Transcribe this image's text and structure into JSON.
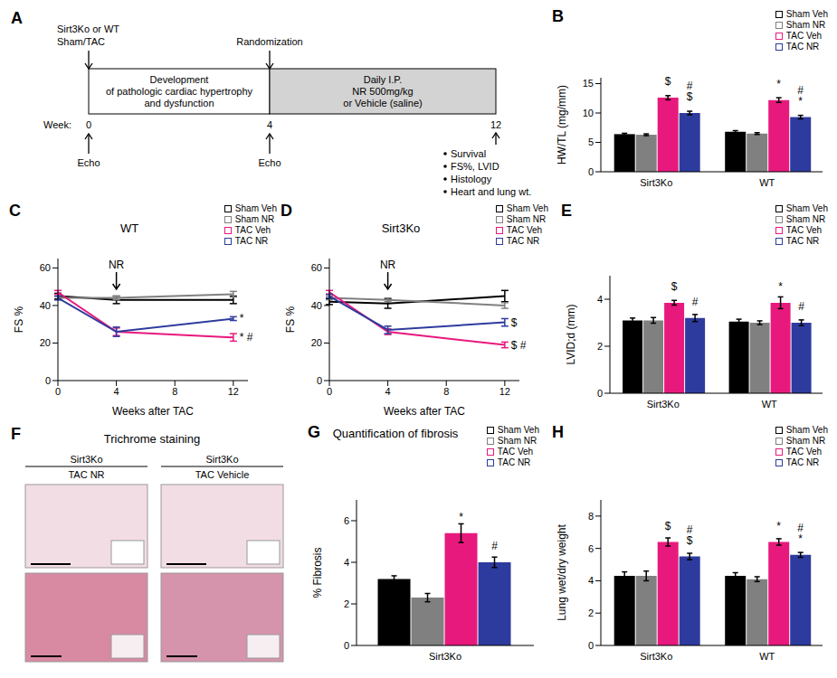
{
  "diagram": {
    "panel": "A",
    "start_labels": [
      "Sirt3Ko or WT",
      "Sham/TAC"
    ],
    "randomization": "Randomization",
    "phase1": [
      "Development",
      "of pathologic cardiac hypertrophy",
      "and dysfunction"
    ],
    "phase2": [
      "Daily I.P.",
      "NR 500mg/kg",
      "or Vehicle (saline)"
    ],
    "week_label": "Week:",
    "weeks": [
      0,
      4,
      12
    ],
    "echo": "Echo",
    "outcomes": [
      "Survival",
      "FS%, LVID",
      "Histology",
      "Heart and lung wt."
    ]
  },
  "image_panel": {
    "panel": "F",
    "title": "Trichrome staining",
    "columns": [
      [
        "Sirt3Ko",
        "TAC NR"
      ],
      [
        "Sirt3Ko",
        "TAC Vehicle"
      ]
    ]
  },
  "chart_data": [
    {
      "panel": "B",
      "type": "bar",
      "y_label": "HW/TL (mg/mm)",
      "categories": [
        "Sirt3Ko",
        "WT"
      ],
      "ylim": [
        0,
        16
      ],
      "yticks": [
        0,
        5,
        10,
        15
      ],
      "series": [
        {
          "name": "Sham Veh",
          "color": "#000000",
          "values": [
            6.4,
            6.8
          ],
          "errors": [
            0.15,
            0.2
          ]
        },
        {
          "name": "Sham NR",
          "color": "#808080",
          "values": [
            6.3,
            6.5
          ],
          "errors": [
            0.15,
            0.15
          ]
        },
        {
          "name": "TAC Veh",
          "color": "#e8197d",
          "values": [
            12.6,
            12.2
          ],
          "errors": [
            0.35,
            0.4
          ],
          "annotations": [
            [
              "$"
            ],
            [
              "*"
            ]
          ]
        },
        {
          "name": "TAC NR",
          "color": "#2e3b9e",
          "values": [
            10.0,
            9.3
          ],
          "errors": [
            0.3,
            0.3
          ],
          "annotations": [
            [
              "#",
              "$"
            ],
            [
              "#",
              "*"
            ]
          ]
        }
      ]
    },
    {
      "panel": "C",
      "type": "line",
      "title": "WT",
      "x": [
        0,
        4,
        12
      ],
      "xlim": [
        0,
        13
      ],
      "xticks": [
        0,
        4,
        8,
        12
      ],
      "x_label": "Weeks after TAC",
      "y_label": "FS %",
      "ylim": [
        0,
        65
      ],
      "yticks": [
        0,
        20,
        40,
        60
      ],
      "annotation": {
        "text": "NR",
        "x": 4
      },
      "series": [
        {
          "name": "Sham Veh",
          "color": "#000000",
          "values": [
            45,
            43,
            43
          ],
          "errors": [
            1.5,
            2,
            2
          ]
        },
        {
          "name": "Sham NR",
          "color": "#808080",
          "values": [
            44,
            44,
            46
          ],
          "errors": [
            1,
            1,
            1.5
          ]
        },
        {
          "name": "TAC Veh",
          "color": "#e8197d",
          "values": [
            47,
            26,
            23
          ],
          "errors": [
            1,
            2,
            2
          ],
          "annotation": "* #"
        },
        {
          "name": "TAC NR",
          "color": "#2e3b9e",
          "values": [
            44,
            26,
            33
          ],
          "errors": [
            1,
            2.5,
            1
          ],
          "annotation": "*"
        }
      ]
    },
    {
      "panel": "D",
      "type": "line",
      "title": "Sirt3Ko",
      "x": [
        0,
        4,
        12
      ],
      "xlim": [
        0,
        13
      ],
      "xticks": [
        0,
        4,
        8,
        12
      ],
      "x_label": "Weeks after TAC",
      "y_label": "FS %",
      "ylim": [
        0,
        65
      ],
      "yticks": [
        0,
        20,
        40,
        60
      ],
      "annotation": {
        "text": "NR",
        "x": 4
      },
      "series": [
        {
          "name": "Sham Veh",
          "color": "#000000",
          "values": [
            42,
            41,
            45
          ],
          "errors": [
            1.5,
            2.5,
            3
          ]
        },
        {
          "name": "Sham NR",
          "color": "#808080",
          "values": [
            44,
            43,
            40
          ],
          "errors": [
            1,
            1,
            1.5
          ]
        },
        {
          "name": "TAC Veh",
          "color": "#e8197d",
          "values": [
            47,
            26,
            19
          ],
          "errors": [
            1,
            1.5,
            1.5
          ],
          "annotation": "$ #"
        },
        {
          "name": "TAC NR",
          "color": "#2e3b9e",
          "values": [
            45,
            27,
            31
          ],
          "errors": [
            1,
            2,
            2
          ],
          "annotation": "$"
        }
      ]
    },
    {
      "panel": "E",
      "type": "bar",
      "y_label": "LVID;d (mm)",
      "categories": [
        "Sirt3Ko",
        "WT"
      ],
      "ylim": [
        0,
        5
      ],
      "yticks": [
        0,
        2,
        4
      ],
      "series": [
        {
          "name": "Sham Veh",
          "color": "#000000",
          "values": [
            3.1,
            3.05
          ],
          "errors": [
            0.1,
            0.1
          ]
        },
        {
          "name": "Sham NR",
          "color": "#808080",
          "values": [
            3.1,
            3.0
          ],
          "errors": [
            0.12,
            0.08
          ]
        },
        {
          "name": "TAC Veh",
          "color": "#e8197d",
          "values": [
            3.85,
            3.85
          ],
          "errors": [
            0.1,
            0.25
          ],
          "annotations": [
            [
              "$"
            ],
            [
              "*"
            ]
          ]
        },
        {
          "name": "TAC NR",
          "color": "#2e3b9e",
          "values": [
            3.2,
            3.0
          ],
          "errors": [
            0.15,
            0.12
          ],
          "annotations": [
            [
              "#"
            ],
            [
              "#"
            ]
          ]
        }
      ]
    },
    {
      "panel": "G",
      "type": "bar",
      "title": "Quantification of fibrosis",
      "y_label": "% Fibrosis",
      "categories": [
        "Sirt3Ko"
      ],
      "ylim": [
        0,
        7
      ],
      "yticks": [
        0,
        2,
        4,
        6
      ],
      "series": [
        {
          "name": "Sham Veh",
          "color": "#000000",
          "values": [
            3.2
          ],
          "errors": [
            0.15
          ]
        },
        {
          "name": "Sham NR",
          "color": "#808080",
          "values": [
            2.3
          ],
          "errors": [
            0.2
          ]
        },
        {
          "name": "TAC Veh",
          "color": "#e8197d",
          "values": [
            5.4
          ],
          "errors": [
            0.45
          ],
          "annotations": [
            [
              "*"
            ]
          ]
        },
        {
          "name": "TAC NR",
          "color": "#2e3b9e",
          "values": [
            4.0
          ],
          "errors": [
            0.25
          ],
          "annotations": [
            [
              "#"
            ]
          ]
        }
      ]
    },
    {
      "panel": "H",
      "type": "bar",
      "y_label": "Lung wet/dry weight",
      "categories": [
        "Sirt3Ko",
        "WT"
      ],
      "ylim": [
        0,
        9
      ],
      "yticks": [
        0,
        2,
        4,
        6,
        8
      ],
      "series": [
        {
          "name": "Sham Veh",
          "color": "#000000",
          "values": [
            4.3,
            4.3
          ],
          "errors": [
            0.25,
            0.2
          ]
        },
        {
          "name": "Sham NR",
          "color": "#808080",
          "values": [
            4.3,
            4.1
          ],
          "errors": [
            0.3,
            0.15
          ]
        },
        {
          "name": "TAC Veh",
          "color": "#e8197d",
          "values": [
            6.4,
            6.4
          ],
          "errors": [
            0.25,
            0.2
          ],
          "annotations": [
            [
              "$"
            ],
            [
              "*"
            ]
          ]
        },
        {
          "name": "TAC NR",
          "color": "#2e3b9e",
          "values": [
            5.5,
            5.6
          ],
          "errors": [
            0.2,
            0.15
          ],
          "annotations": [
            [
              "#",
              "$"
            ],
            [
              "#",
              "*"
            ]
          ]
        }
      ]
    }
  ]
}
